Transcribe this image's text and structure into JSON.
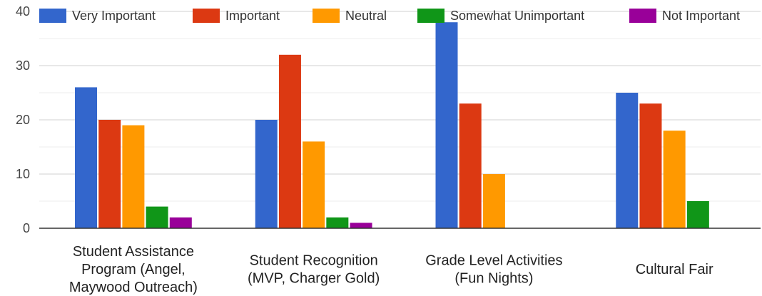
{
  "chart_data": {
    "type": "bar",
    "title": "",
    "xlabel": "",
    "ylabel": "",
    "ylim": [
      0,
      40
    ],
    "yticks": [
      "0",
      "10",
      "20",
      "30",
      "40"
    ],
    "grid": true,
    "legend_position": "top",
    "categories": [
      "Student Assistance Program (Angel, Maywood Outreach)",
      "Student Recognition (MVP, Charger Gold)",
      "Grade Level Activities (Fun Nights)",
      "Cultural Fair"
    ],
    "category_label_lines": [
      [
        "Student Assistance",
        "Program (Angel,",
        "Maywood Outreach)"
      ],
      [
        "Student Recognition",
        "(MVP, Charger Gold)"
      ],
      [
        "Grade Level Activities",
        "(Fun Nights)"
      ],
      [
        "Cultural Fair"
      ]
    ],
    "series": [
      {
        "name": "Very Important",
        "color": "#3366cc",
        "values": [
          26,
          20,
          38,
          25
        ]
      },
      {
        "name": "Important",
        "color": "#dc3912",
        "values": [
          20,
          32,
          23,
          23
        ]
      },
      {
        "name": "Neutral",
        "color": "#ff9900",
        "values": [
          19,
          16,
          10,
          18
        ]
      },
      {
        "name": "Somewhat Unimportant",
        "color": "#109618",
        "values": [
          4,
          2,
          0,
          5
        ]
      },
      {
        "name": "Not Important",
        "color": "#990099",
        "values": [
          2,
          1,
          0,
          0
        ]
      }
    ]
  }
}
